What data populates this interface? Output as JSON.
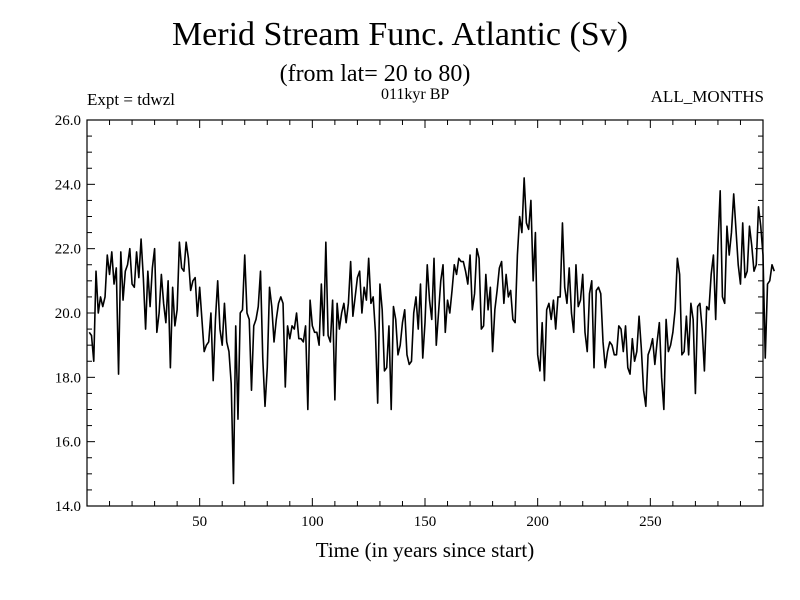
{
  "chart_data": {
    "type": "line",
    "title": "Merid Stream Func. Atlantic (Sv)",
    "subtitle": "(from lat= 20 to 80)",
    "annotations": {
      "left": "Expt = tdwzl",
      "center": "011kyr BP",
      "right": "ALL_MONTHS"
    },
    "xlabel": "Time (in years since start)",
    "ylabel": "",
    "xlim": [
      0,
      300
    ],
    "ylim": [
      14.0,
      26.0
    ],
    "x_ticks": [
      50,
      100,
      150,
      200,
      250
    ],
    "x_tick_labels": [
      "50",
      "100",
      "150",
      "200",
      "250"
    ],
    "y_ticks": [
      14.0,
      16.0,
      18.0,
      20.0,
      22.0,
      24.0,
      26.0
    ],
    "y_tick_labels": [
      "14.0",
      "16.0",
      "18.0",
      "20.0",
      "22.0",
      "24.0",
      "26.0"
    ],
    "grid": false,
    "x_start": 1,
    "x_step": 1,
    "values": [
      19.4,
      19.3,
      18.5,
      21.3,
      20.0,
      20.5,
      20.2,
      20.5,
      21.8,
      21.2,
      21.9,
      20.9,
      21.4,
      18.1,
      21.9,
      20.4,
      21.3,
      21.5,
      22.0,
      20.9,
      20.8,
      21.9,
      21.1,
      22.3,
      21.1,
      19.5,
      21.3,
      20.2,
      21.4,
      22.0,
      19.4,
      20.0,
      21.2,
      20.3,
      19.7,
      21.0,
      18.3,
      20.8,
      19.6,
      20.1,
      22.2,
      21.4,
      21.3,
      22.2,
      21.7,
      20.7,
      21.0,
      21.1,
      19.9,
      20.8,
      19.8,
      18.8,
      19.0,
      19.1,
      20.0,
      17.9,
      19.8,
      21.0,
      19.5,
      19.0,
      20.3,
      19.1,
      18.8,
      17.8,
      14.7,
      19.6,
      16.7,
      20.0,
      20.1,
      21.8,
      20.0,
      19.8,
      17.6,
      19.6,
      19.8,
      20.2,
      21.3,
      18.6,
      17.1,
      18.3,
      20.8,
      20.2,
      19.1,
      19.8,
      20.3,
      20.5,
      20.3,
      17.7,
      19.6,
      19.2,
      19.6,
      19.5,
      20.0,
      19.2,
      19.2,
      19.1,
      19.6,
      17.0,
      20.4,
      19.6,
      19.4,
      19.4,
      19.0,
      20.9,
      19.3,
      22.2,
      19.3,
      19.1,
      20.4,
      17.3,
      20.3,
      19.5,
      20.0,
      20.3,
      19.7,
      20.3,
      21.6,
      19.9,
      20.5,
      21.1,
      21.3,
      20.0,
      20.8,
      20.4,
      21.7,
      20.3,
      20.5,
      19.4,
      17.2,
      20.9,
      20.1,
      18.2,
      18.3,
      19.6,
      17.0,
      20.2,
      19.8,
      18.7,
      19.0,
      19.7,
      20.1,
      18.7,
      18.4,
      18.5,
      20.0,
      20.5,
      19.5,
      20.9,
      18.6,
      19.7,
      21.5,
      20.4,
      19.8,
      21.7,
      19.0,
      20.0,
      21.0,
      21.5,
      19.4,
      20.4,
      20.0,
      20.7,
      21.5,
      21.2,
      21.7,
      21.6,
      21.6,
      21.3,
      20.9,
      21.8,
      20.1,
      20.6,
      22.0,
      21.7,
      19.5,
      19.6,
      21.2,
      20.1,
      20.8,
      18.8,
      20.1,
      20.7,
      21.4,
      21.6,
      20.3,
      21.2,
      20.5,
      20.7,
      19.8,
      19.7,
      21.8,
      23.0,
      22.5,
      24.2,
      22.8,
      22.6,
      23.5,
      21.0,
      22.5,
      18.7,
      18.2,
      19.7,
      17.9,
      20.1,
      20.3,
      19.8,
      20.4,
      19.5,
      20.5,
      20.5,
      22.8,
      20.8,
      20.3,
      21.4,
      20.0,
      19.4,
      21.5,
      20.2,
      20.4,
      21.2,
      19.4,
      18.8,
      20.6,
      21.0,
      18.3,
      20.7,
      20.8,
      20.6,
      19.1,
      18.3,
      18.8,
      19.1,
      19.0,
      18.7,
      18.7,
      19.6,
      19.5,
      18.8,
      19.6,
      18.3,
      18.1,
      19.2,
      18.5,
      18.8,
      19.9,
      18.9,
      17.6,
      17.1,
      18.7,
      18.9,
      19.2,
      18.4,
      19.1,
      19.7,
      18.0,
      17.0,
      19.8,
      18.8,
      19.0,
      19.4,
      20.1,
      21.7,
      21.2,
      18.7,
      18.8,
      19.9,
      18.7,
      20.3,
      19.8,
      17.5,
      20.2,
      20.3,
      19.5,
      18.2,
      20.2,
      20.1,
      21.2,
      21.8,
      19.8,
      22.1,
      23.8,
      20.5,
      20.3,
      22.7,
      21.8,
      22.5,
      23.7,
      22.6,
      21.5,
      20.9,
      22.8,
      21.1,
      21.3,
      22.7,
      22.1,
      21.3,
      21.5,
      23.3,
      22.7,
      21.8,
      18.6,
      20.9,
      21.0,
      21.5,
      21.3
    ]
  }
}
